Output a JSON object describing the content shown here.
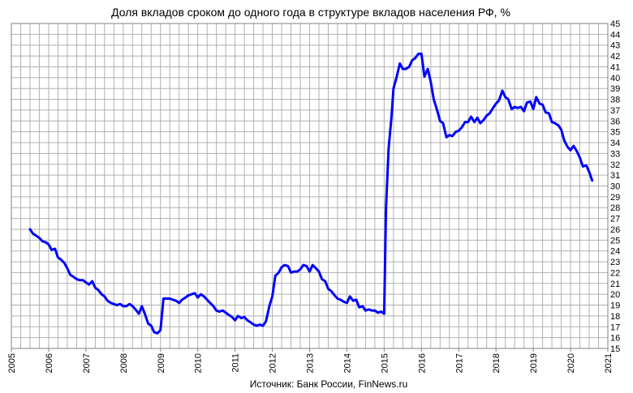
{
  "chart_data": {
    "type": "line",
    "title": "Доля вкладов сроком до одного года в структуре вкладов населения РФ, %",
    "source": "Источник: Банк России, FinNews.ru",
    "xlabel": "",
    "ylabel": "",
    "xlim": [
      2005,
      2021
    ],
    "ylim": [
      15,
      45
    ],
    "x_ticks": [
      "2005",
      "2006",
      "2007",
      "2008",
      "2009",
      "2010",
      "2011",
      "2012",
      "2013",
      "2014",
      "2015",
      "2016",
      "2017",
      "2018",
      "2019",
      "2020",
      "2021"
    ],
    "y_ticks": [
      "15",
      "16",
      "17",
      "18",
      "19",
      "20",
      "21",
      "22",
      "23",
      "24",
      "25",
      "26",
      "27",
      "28",
      "29",
      "30",
      "31",
      "32",
      "33",
      "34",
      "35",
      "36",
      "37",
      "38",
      "39",
      "40",
      "41",
      "42",
      "43",
      "44",
      "45"
    ],
    "grid": "on",
    "line_color": "#0000ff",
    "series": [
      {
        "points": [
          [
            2005.5,
            26.0
          ],
          [
            2005.58,
            25.6
          ],
          [
            2005.67,
            25.4
          ],
          [
            2005.75,
            25.2
          ],
          [
            2005.83,
            24.9
          ],
          [
            2005.92,
            24.8
          ],
          [
            2006.0,
            24.6
          ],
          [
            2006.08,
            24.1
          ],
          [
            2006.17,
            24.2
          ],
          [
            2006.25,
            23.4
          ],
          [
            2006.33,
            23.2
          ],
          [
            2006.42,
            22.9
          ],
          [
            2006.5,
            22.4
          ],
          [
            2006.58,
            21.8
          ],
          [
            2006.67,
            21.6
          ],
          [
            2006.75,
            21.4
          ],
          [
            2006.83,
            21.3
          ],
          [
            2006.92,
            21.3
          ],
          [
            2007.0,
            21.1
          ],
          [
            2007.08,
            20.9
          ],
          [
            2007.17,
            21.2
          ],
          [
            2007.25,
            20.6
          ],
          [
            2007.33,
            20.4
          ],
          [
            2007.42,
            20.0
          ],
          [
            2007.5,
            19.8
          ],
          [
            2007.58,
            19.4
          ],
          [
            2007.67,
            19.2
          ],
          [
            2007.75,
            19.1
          ],
          [
            2007.83,
            19.0
          ],
          [
            2007.92,
            19.1
          ],
          [
            2008.0,
            18.9
          ],
          [
            2008.08,
            18.9
          ],
          [
            2008.17,
            19.1
          ],
          [
            2008.25,
            18.9
          ],
          [
            2008.33,
            18.6
          ],
          [
            2008.42,
            18.2
          ],
          [
            2008.5,
            18.9
          ],
          [
            2008.58,
            18.2
          ],
          [
            2008.67,
            17.3
          ],
          [
            2008.75,
            17.1
          ],
          [
            2008.83,
            16.5
          ],
          [
            2008.92,
            16.4
          ],
          [
            2009.0,
            16.7
          ],
          [
            2009.08,
            19.6
          ],
          [
            2009.17,
            19.6
          ],
          [
            2009.25,
            19.6
          ],
          [
            2009.33,
            19.5
          ],
          [
            2009.42,
            19.4
          ],
          [
            2009.5,
            19.2
          ],
          [
            2009.58,
            19.5
          ],
          [
            2009.67,
            19.7
          ],
          [
            2009.75,
            19.9
          ],
          [
            2009.83,
            20.0
          ],
          [
            2009.92,
            20.1
          ],
          [
            2010.0,
            19.7
          ],
          [
            2010.08,
            20.0
          ],
          [
            2010.17,
            19.8
          ],
          [
            2010.25,
            19.5
          ],
          [
            2010.33,
            19.2
          ],
          [
            2010.42,
            18.9
          ],
          [
            2010.5,
            18.5
          ],
          [
            2010.58,
            18.4
          ],
          [
            2010.67,
            18.5
          ],
          [
            2010.75,
            18.3
          ],
          [
            2010.83,
            18.1
          ],
          [
            2010.92,
            17.9
          ],
          [
            2011.0,
            17.6
          ],
          [
            2011.08,
            18.0
          ],
          [
            2011.17,
            17.8
          ],
          [
            2011.25,
            17.9
          ],
          [
            2011.33,
            17.6
          ],
          [
            2011.42,
            17.4
          ],
          [
            2011.5,
            17.2
          ],
          [
            2011.58,
            17.1
          ],
          [
            2011.67,
            17.2
          ],
          [
            2011.75,
            17.1
          ],
          [
            2011.83,
            17.5
          ],
          [
            2011.92,
            18.9
          ],
          [
            2012.0,
            19.8
          ],
          [
            2012.08,
            21.7
          ],
          [
            2012.17,
            22.0
          ],
          [
            2012.25,
            22.5
          ],
          [
            2012.33,
            22.7
          ],
          [
            2012.42,
            22.6
          ],
          [
            2012.5,
            22.0
          ],
          [
            2012.58,
            22.1
          ],
          [
            2012.67,
            22.1
          ],
          [
            2012.75,
            22.3
          ],
          [
            2012.83,
            22.7
          ],
          [
            2012.92,
            22.6
          ],
          [
            2013.0,
            22.1
          ],
          [
            2013.08,
            22.7
          ],
          [
            2013.17,
            22.4
          ],
          [
            2013.25,
            22.1
          ],
          [
            2013.33,
            21.4
          ],
          [
            2013.42,
            21.2
          ],
          [
            2013.5,
            20.5
          ],
          [
            2013.58,
            20.3
          ],
          [
            2013.67,
            19.9
          ],
          [
            2013.75,
            19.6
          ],
          [
            2013.83,
            19.5
          ],
          [
            2013.92,
            19.3
          ],
          [
            2014.0,
            19.2
          ],
          [
            2014.08,
            19.8
          ],
          [
            2014.17,
            19.4
          ],
          [
            2014.25,
            19.5
          ],
          [
            2014.33,
            18.8
          ],
          [
            2014.42,
            18.9
          ],
          [
            2014.5,
            18.5
          ],
          [
            2014.58,
            18.6
          ],
          [
            2014.67,
            18.5
          ],
          [
            2014.75,
            18.5
          ],
          [
            2014.83,
            18.3
          ],
          [
            2014.92,
            18.4
          ],
          [
            2015.0,
            18.2
          ],
          [
            2015.05,
            28.0
          ],
          [
            2015.12,
            33.5
          ],
          [
            2015.2,
            36.5
          ],
          [
            2015.25,
            39.0
          ],
          [
            2015.33,
            40.0
          ],
          [
            2015.42,
            41.3
          ],
          [
            2015.5,
            40.8
          ],
          [
            2015.58,
            40.8
          ],
          [
            2015.67,
            41.0
          ],
          [
            2015.75,
            41.6
          ],
          [
            2015.83,
            41.8
          ],
          [
            2015.92,
            42.2
          ],
          [
            2016.0,
            42.2
          ],
          [
            2016.08,
            40.1
          ],
          [
            2016.17,
            40.8
          ],
          [
            2016.25,
            39.6
          ],
          [
            2016.33,
            38.0
          ],
          [
            2016.42,
            37.0
          ],
          [
            2016.5,
            36.0
          ],
          [
            2016.58,
            35.8
          ],
          [
            2016.67,
            34.5
          ],
          [
            2016.75,
            34.7
          ],
          [
            2016.83,
            34.6
          ],
          [
            2016.92,
            35.0
          ],
          [
            2017.0,
            35.1
          ],
          [
            2017.08,
            35.4
          ],
          [
            2017.17,
            35.9
          ],
          [
            2017.25,
            35.9
          ],
          [
            2017.33,
            36.4
          ],
          [
            2017.42,
            35.9
          ],
          [
            2017.5,
            36.3
          ],
          [
            2017.58,
            35.8
          ],
          [
            2017.67,
            36.1
          ],
          [
            2017.75,
            36.5
          ],
          [
            2017.83,
            36.7
          ],
          [
            2017.92,
            37.2
          ],
          [
            2018.0,
            37.6
          ],
          [
            2018.08,
            37.9
          ],
          [
            2018.17,
            38.8
          ],
          [
            2018.25,
            38.2
          ],
          [
            2018.33,
            38.0
          ],
          [
            2018.42,
            37.1
          ],
          [
            2018.5,
            37.3
          ],
          [
            2018.58,
            37.2
          ],
          [
            2018.67,
            37.3
          ],
          [
            2018.75,
            36.9
          ],
          [
            2018.83,
            37.7
          ],
          [
            2018.92,
            37.8
          ],
          [
            2019.0,
            37.1
          ],
          [
            2019.08,
            38.2
          ],
          [
            2019.17,
            37.6
          ],
          [
            2019.25,
            37.5
          ],
          [
            2019.33,
            36.8
          ],
          [
            2019.42,
            36.7
          ],
          [
            2019.5,
            35.9
          ],
          [
            2019.58,
            35.8
          ],
          [
            2019.67,
            35.6
          ],
          [
            2019.75,
            35.2
          ],
          [
            2019.83,
            34.2
          ],
          [
            2019.92,
            33.6
          ],
          [
            2020.0,
            33.3
          ],
          [
            2020.08,
            33.7
          ],
          [
            2020.17,
            33.2
          ],
          [
            2020.25,
            32.6
          ],
          [
            2020.33,
            31.8
          ],
          [
            2020.42,
            31.9
          ],
          [
            2020.5,
            31.3
          ],
          [
            2020.58,
            30.5
          ]
        ]
      }
    ]
  }
}
